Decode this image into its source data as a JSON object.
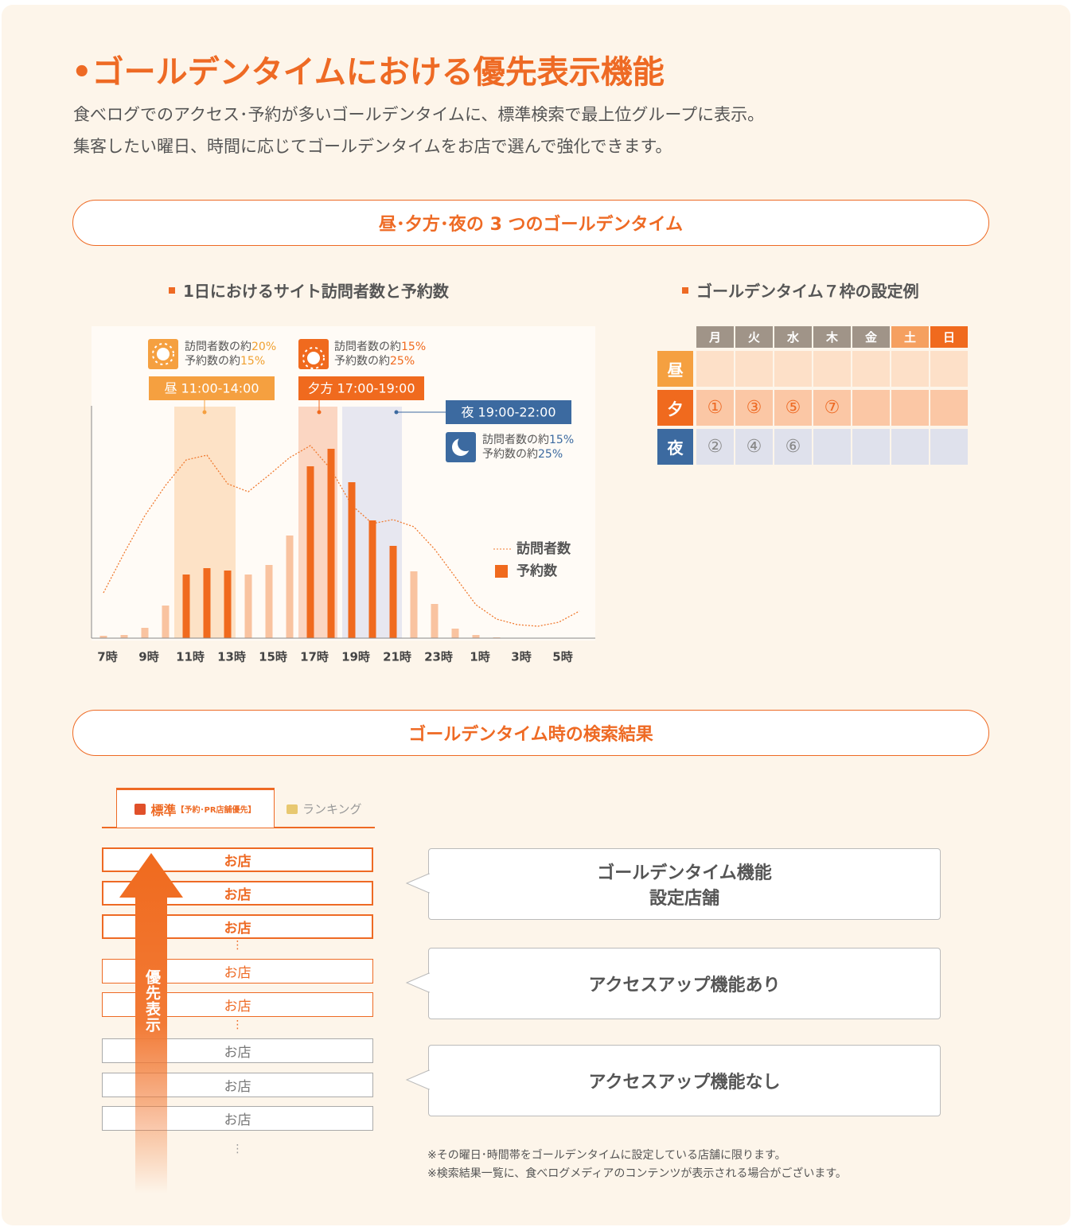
{
  "header": {
    "title": "•ゴールデンタイムにおける優先表示機能",
    "description": [
      "食べログでのアクセス･予約が多いゴールデンタイムに、標準検索で最上位グループに表示。",
      "集客したい曜日、時間に応じてゴールデンタイムをお店で選んで強化できます。"
    ]
  },
  "section1": {
    "heading": "昼･夕方･夜の 3 つのゴールデンタイム"
  },
  "chart_data": {
    "type": "bar",
    "title": "1日におけるサイト訪問者数と予約数",
    "categories": [
      "7時",
      null,
      "9時",
      null,
      "11時",
      null,
      "13時",
      null,
      "15時",
      null,
      "17時",
      null,
      "19時",
      null,
      "21時",
      null,
      "23時",
      null,
      "1時",
      null,
      "3時",
      null,
      "5時",
      null
    ],
    "series": [
      {
        "name": "訪問者数",
        "type": "line",
        "color": "#f07a30",
        "values": [
          57,
          107,
          154,
          192,
          224,
          230,
          194,
          184,
          205,
          227,
          242,
          212,
          167,
          144,
          149,
          140,
          112,
          77,
          42,
          24,
          17,
          15,
          20,
          34
        ]
      },
      {
        "name": "予約数",
        "color": "#f06a1e",
        "colors": [
          "#f9c3a0",
          "#f9c3a0",
          "#f9c3a0",
          "#f9c3a0",
          "#f06a1e",
          "#f06a1e",
          "#f06a1e",
          "#f9c3a0",
          "#f9c3a0",
          "#f9c3a0",
          "#f06a1e",
          "#f06a1e",
          "#f06a1e",
          "#f06a1e",
          "#f06a1e",
          "#f9c3a0",
          "#f9c3a0",
          "#f9c3a0",
          "#f9c3a0",
          "#f9c3a0",
          "#f9c3a0",
          "#f9c3a0",
          "#f9c3a0",
          "#f9c3a0"
        ],
        "values": [
          3,
          4,
          13,
          41,
          80,
          88,
          85,
          80,
          92,
          129,
          216,
          238,
          196,
          148,
          116,
          84,
          43,
          12,
          4,
          1,
          0,
          0,
          0,
          0
        ]
      }
    ],
    "ylim": [
      0,
      300
    ],
    "annotations": [
      {
        "label": "昼 11:00-14:00",
        "visitors": "訪問者数の約",
        "visitors_pct": "20%",
        "reservations": "予約数の約",
        "reservations_pct": "15%"
      },
      {
        "label": "夕方 17:00-19:00",
        "visitors": "訪問者数の約",
        "visitors_pct": "15%",
        "reservations": "予約数の約",
        "reservations_pct": "25%"
      },
      {
        "label": "夜 19:00-22:00",
        "visitors": "訪問者数の約",
        "visitors_pct": "15%",
        "reservations": "予約数の約",
        "reservations_pct": "25%"
      }
    ]
  },
  "schedule": {
    "title": "ゴールデンタイム７枠の設定例",
    "days": [
      "月",
      "火",
      "水",
      "木",
      "金",
      "土",
      "日"
    ],
    "rows": [
      {
        "label": "昼",
        "cells": [
          null,
          null,
          null,
          null,
          null,
          null,
          null
        ]
      },
      {
        "label": "夕",
        "cells": [
          "①",
          "③",
          "⑤",
          "⑦",
          null,
          null,
          null
        ]
      },
      {
        "label": "夜",
        "cells": [
          "②",
          "④",
          "⑥",
          null,
          null,
          null,
          null
        ]
      }
    ]
  },
  "section2": {
    "heading": "ゴールデンタイム時の検索結果",
    "tabs": [
      {
        "label": "標準",
        "note": "【予約･PR店舗優先】"
      },
      {
        "label": "ランキング"
      }
    ],
    "results": [
      "お店",
      "お店",
      "お店",
      "お店",
      "お店",
      "お店",
      "お店",
      "お店"
    ],
    "arrow_label": "優先表示",
    "callouts": [
      [
        "ゴールデンタイム機能",
        "設定店舗"
      ],
      [
        "アクセスアップ機能あり"
      ],
      [
        "アクセスアップ機能なし"
      ]
    ],
    "notes": [
      "※その曜日･時間帯をゴールデンタイムに設定している店舗に限ります。",
      "※検索結果一覧に、食べログメディアのコンテンツが表示される場合がございます。"
    ]
  }
}
